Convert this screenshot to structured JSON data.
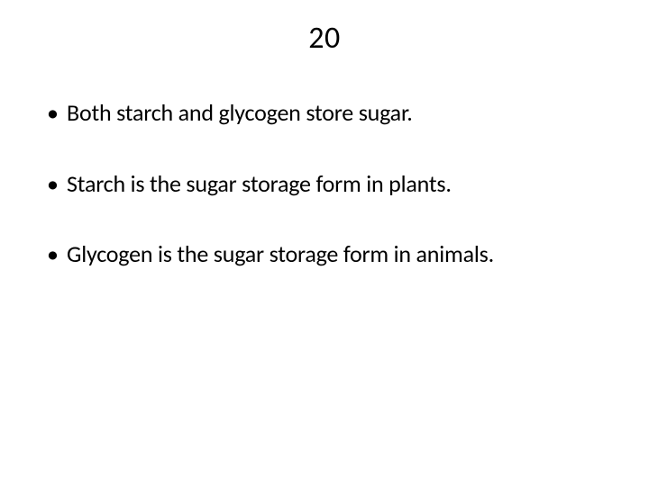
{
  "slide": {
    "title": "20",
    "title_fontsize": 34,
    "title_color": "#000000",
    "background_color": "#ffffff",
    "bullets": [
      {
        "text": "Both starch and glycogen store sugar."
      },
      {
        "text": "Starch is the sugar storage form in plants."
      },
      {
        "text": "Glycogen is the sugar storage form in animals."
      }
    ],
    "bullet_fontsize": 26,
    "bullet_color": "#000000",
    "bullet_marker": "•"
  }
}
